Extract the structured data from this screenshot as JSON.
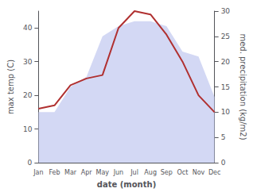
{
  "chart_data": {
    "type": "line",
    "categories": [
      "Jan",
      "Feb",
      "Mar",
      "Apr",
      "May",
      "Jun",
      "Jul",
      "Aug",
      "Sep",
      "Oct",
      "Nov",
      "Dec"
    ],
    "series": [
      {
        "type": "area",
        "color": "#c0c8f0",
        "axis": "y2",
        "values": [
          10,
          10,
          15,
          17,
          25,
          27,
          28,
          28,
          27,
          22,
          21,
          13
        ]
      },
      {
        "type": "line",
        "color": "#b03030",
        "values": [
          16,
          17,
          23,
          25,
          26,
          40,
          45,
          44,
          38,
          30,
          20,
          15
        ]
      }
    ],
    "xlabel": "date (month)",
    "ylabel": "max temp (C)",
    "y2label": "med. precipitation (kg/m2)",
    "ylim": [
      0,
      45
    ],
    "yticks": [
      0,
      10,
      20,
      30,
      40
    ],
    "y2lim": [
      0,
      30
    ],
    "y2ticks": [
      0,
      5,
      10,
      15,
      20,
      25,
      30
    ],
    "grid": false
  }
}
